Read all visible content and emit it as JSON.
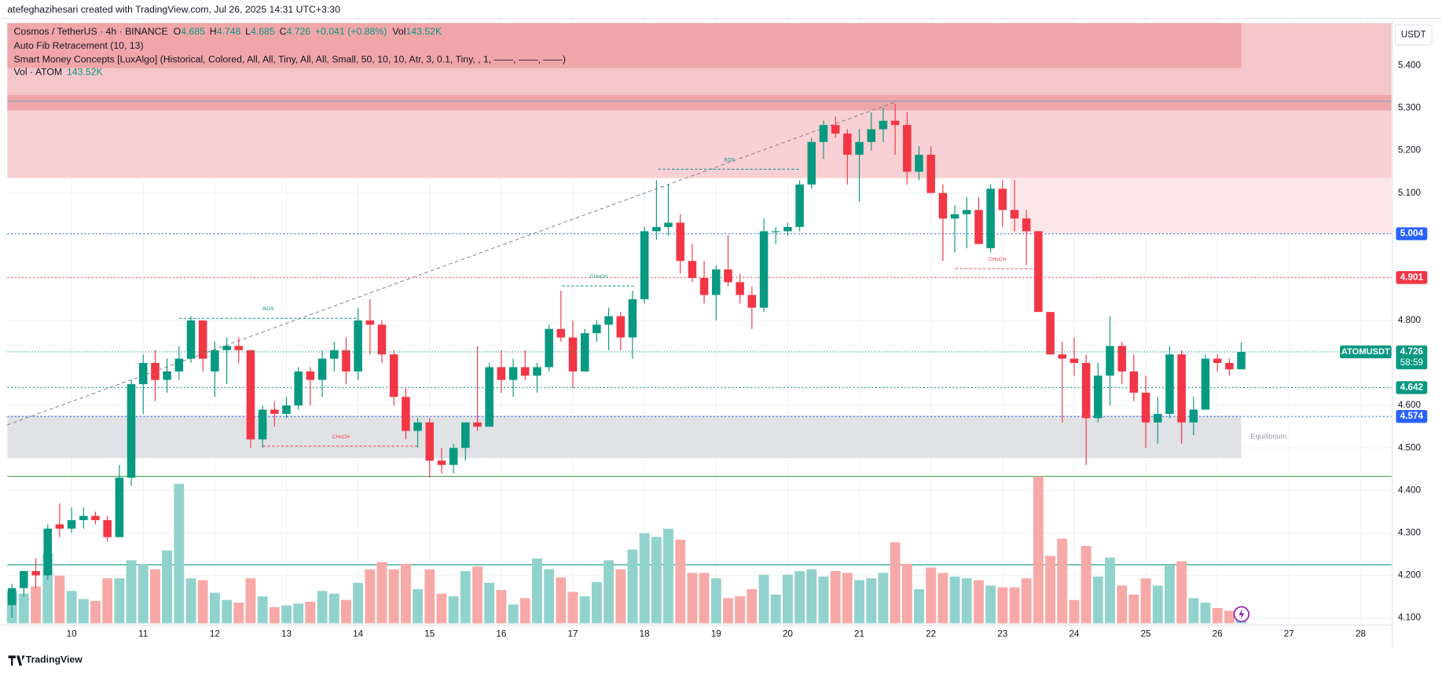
{
  "attribution": "atefeghazihesari created with TradingView.com, Jul 26, 2025 14:31 UTC+3:30",
  "footer": "TradingView",
  "chart_data": {
    "type": "candlestick",
    "symbol": "Cosmos / TetherUS · 4h · BINANCE",
    "symbol_short": "ATOMUSDT",
    "countdown": "58:59",
    "currency": "USDT",
    "legend_labels": {
      "open": "O",
      "high": "H",
      "low": "L",
      "close": "C",
      "volume": "Vol"
    },
    "change": "+0.041 (+0.88%)",
    "last_volume_label": "143.52K",
    "indicators": [
      "Auto Fib Retracement (10, 13)",
      "Smart Money Concepts [LuxAlgo] (Historical, Colored, All, All, Tiny, All, All, Small, 50, 10, 10, Atr, 3, 0.1, Tiny, , 1, ——, ——, ——)",
      "Vol · ATOM"
    ],
    "up_color": "#089981",
    "down_color": "#f23645",
    "volume_up_color": "#92d2cc",
    "volume_down_color": "#f7a9a7",
    "x": [
      9.167,
      9.333,
      9.5,
      9.667,
      9.833,
      10,
      10.167,
      10.333,
      10.5,
      10.667,
      10.833,
      11,
      11.167,
      11.333,
      11.5,
      11.667,
      11.833,
      12,
      12.167,
      12.333,
      12.5,
      12.667,
      12.833,
      13,
      13.167,
      13.333,
      13.5,
      13.667,
      13.833,
      14,
      14.167,
      14.333,
      14.5,
      14.667,
      14.833,
      15,
      15.167,
      15.333,
      15.5,
      15.667,
      15.833,
      16,
      16.167,
      16.333,
      16.5,
      16.667,
      16.833,
      17,
      17.167,
      17.333,
      17.5,
      17.667,
      17.833,
      18,
      18.167,
      18.333,
      18.5,
      18.667,
      18.833,
      19,
      19.167,
      19.333,
      19.5,
      19.667,
      19.833,
      20,
      20.167,
      20.333,
      20.5,
      20.667,
      20.833,
      21,
      21.167,
      21.333,
      21.5,
      21.667,
      21.833,
      22,
      22.167,
      22.333,
      22.5,
      22.667,
      22.833,
      23,
      23.167,
      23.333,
      23.5,
      23.667,
      23.833,
      24,
      24.167,
      24.333,
      24.5,
      24.667,
      24.833,
      25,
      25.167,
      25.333,
      25.5,
      25.667,
      25.833,
      26,
      26.167,
      26.333
    ],
    "open": [
      4.13,
      4.17,
      4.21,
      4.2,
      4.32,
      4.31,
      4.33,
      4.34,
      4.33,
      4.29,
      4.43,
      4.65,
      4.7,
      4.66,
      4.68,
      4.71,
      4.8,
      4.68,
      4.73,
      4.74,
      4.73,
      4.52,
      4.59,
      4.58,
      4.6,
      4.68,
      4.66,
      4.71,
      4.73,
      4.68,
      4.8,
      4.79,
      4.72,
      4.62,
      4.54,
      4.56,
      4.47,
      4.46,
      4.5,
      4.56,
      4.55,
      4.69,
      4.66,
      4.69,
      4.67,
      4.69,
      4.78,
      4.76,
      4.68,
      4.77,
      4.79,
      4.81,
      4.76,
      4.85,
      5.01,
      5.02,
      5.03,
      4.94,
      4.9,
      4.86,
      4.92,
      4.89,
      4.86,
      4.83,
      5.01,
      5.01,
      5.02,
      5.12,
      5.22,
      5.26,
      5.24,
      5.19,
      5.22,
      5.25,
      5.27,
      5.26,
      5.15,
      5.19,
      5.1,
      5.04,
      5.05,
      5.06,
      4.97,
      5.11,
      5.06,
      5.04,
      5.01,
      4.82,
      4.72,
      4.71,
      4.7,
      4.57,
      4.67,
      4.74,
      4.68,
      4.63,
      4.56,
      4.58,
      4.72,
      4.56,
      4.59,
      4.71,
      4.7,
      4.685
    ],
    "high": [
      4.18,
      4.21,
      4.24,
      4.32,
      4.37,
      4.36,
      4.36,
      4.35,
      4.34,
      4.46,
      4.66,
      4.72,
      4.73,
      4.71,
      4.74,
      4.81,
      4.8,
      4.75,
      4.76,
      4.76,
      4.73,
      4.6,
      4.61,
      4.62,
      4.69,
      4.69,
      4.73,
      4.75,
      4.76,
      4.83,
      4.85,
      4.8,
      4.73,
      4.64,
      4.57,
      4.57,
      4.5,
      4.51,
      4.56,
      4.74,
      4.7,
      4.73,
      4.71,
      4.73,
      4.7,
      4.79,
      4.87,
      4.8,
      4.78,
      4.8,
      4.83,
      4.82,
      4.87,
      5.02,
      5.13,
      5.12,
      5.05,
      4.98,
      4.94,
      4.93,
      5.0,
      4.91,
      4.88,
      5.04,
      5.02,
      5.03,
      5.13,
      5.23,
      5.27,
      5.28,
      5.25,
      5.25,
      5.29,
      5.3,
      5.31,
      5.29,
      5.21,
      5.21,
      5.12,
      5.07,
      5.09,
      5.09,
      5.12,
      5.13,
      5.13,
      5.06,
      5.01,
      4.82,
      4.75,
      4.76,
      4.72,
      4.7,
      4.81,
      4.75,
      4.72,
      4.67,
      4.62,
      4.74,
      4.73,
      4.62,
      4.72,
      4.72,
      4.71,
      4.748
    ],
    "low": [
      4.1,
      4.15,
      4.17,
      4.19,
      4.29,
      4.3,
      4.31,
      4.32,
      4.28,
      4.29,
      4.41,
      4.58,
      4.61,
      4.63,
      4.66,
      4.7,
      4.68,
      4.62,
      4.65,
      4.7,
      4.5,
      4.5,
      4.55,
      4.57,
      4.59,
      4.6,
      4.62,
      4.68,
      4.65,
      4.66,
      4.72,
      4.7,
      4.6,
      4.52,
      4.5,
      4.43,
      4.44,
      4.44,
      4.47,
      4.54,
      4.55,
      4.63,
      4.62,
      4.66,
      4.63,
      4.68,
      4.75,
      4.64,
      4.68,
      4.75,
      4.73,
      4.73,
      4.71,
      4.84,
      4.99,
      5.0,
      4.91,
      4.89,
      4.84,
      4.8,
      4.88,
      4.84,
      4.78,
      4.82,
      4.98,
      5.0,
      5.01,
      5.11,
      5.18,
      5.23,
      5.12,
      5.08,
      5.2,
      5.22,
      5.19,
      5.12,
      5.13,
      5.1,
      4.94,
      4.96,
      4.97,
      4.98,
      4.96,
      5.02,
      5.01,
      4.93,
      4.82,
      4.72,
      4.56,
      4.67,
      4.46,
      4.56,
      4.6,
      4.65,
      4.61,
      4.5,
      4.51,
      4.57,
      4.51,
      4.53,
      4.59,
      4.68,
      4.67,
      4.685
    ],
    "close": [
      4.17,
      4.21,
      4.2,
      4.31,
      4.31,
      4.33,
      4.34,
      4.33,
      4.29,
      4.43,
      4.65,
      4.7,
      4.66,
      4.68,
      4.71,
      4.8,
      4.71,
      4.73,
      4.74,
      4.73,
      4.52,
      4.59,
      4.58,
      4.6,
      4.68,
      4.66,
      4.71,
      4.73,
      4.68,
      4.8,
      4.79,
      4.72,
      4.62,
      4.54,
      4.56,
      4.47,
      4.46,
      4.5,
      4.56,
      4.55,
      4.69,
      4.66,
      4.69,
      4.67,
      4.69,
      4.78,
      4.76,
      4.68,
      4.77,
      4.79,
      4.81,
      4.76,
      4.85,
      5.01,
      5.02,
      5.03,
      4.94,
      4.9,
      4.86,
      4.92,
      4.89,
      4.86,
      4.83,
      5.01,
      5.01,
      5.02,
      5.12,
      5.22,
      5.26,
      5.24,
      5.19,
      5.22,
      5.25,
      5.27,
      5.26,
      5.15,
      5.19,
      5.1,
      5.04,
      5.05,
      5.06,
      4.98,
      5.11,
      5.06,
      5.04,
      5.01,
      4.82,
      4.72,
      4.71,
      4.7,
      4.57,
      4.67,
      4.74,
      4.68,
      4.63,
      4.56,
      4.58,
      4.72,
      4.56,
      4.59,
      4.71,
      4.7,
      4.685,
      4.726
    ],
    "volume": [
      504,
      462,
      574,
      1092,
      742,
      504,
      378,
      350,
      700,
      700,
      980,
      924,
      840,
      1134,
      2170,
      700,
      672,
      476,
      364,
      322,
      700,
      420,
      252,
      280,
      308,
      336,
      504,
      462,
      364,
      630,
      840,
      952,
      840,
      924,
      532,
      840,
      462,
      420,
      812,
      882,
      630,
      518,
      294,
      392,
      1008,
      840,
      714,
      490,
      420,
      644,
      980,
      840,
      1148,
      1400,
      1344,
      1470,
      1302,
      784,
      784,
      700,
      392,
      420,
      532,
      756,
      448,
      756,
      812,
      840,
      728,
      812,
      784,
      672,
      700,
      784,
      1260,
      924,
      532,
      868,
      784,
      728,
      700,
      672,
      588,
      560,
      560,
      700,
      2282,
      1050,
      1316,
      364,
      1204,
      728,
      1022,
      588,
      448,
      700,
      588,
      896,
      966,
      392,
      322,
      238,
      196,
      143.52
    ],
    "volume_lim": [
      0,
      3000
    ],
    "xlim": [
      9.103,
      28.43
    ],
    "xticks": [
      10,
      11,
      12,
      13,
      14,
      15,
      16,
      17,
      18,
      19,
      20,
      21,
      22,
      23,
      24,
      25,
      26,
      27,
      28
    ],
    "ylim": [
      4.087,
      5.5
    ],
    "yticks": [
      {
        "value": 4.1,
        "label": "4.100"
      },
      {
        "value": 4.2,
        "label": "4.200"
      },
      {
        "value": 4.3,
        "label": "4.300"
      },
      {
        "value": 4.4,
        "label": "4.400"
      },
      {
        "value": 4.5,
        "label": "4.500"
      },
      {
        "value": 4.6,
        "label": "4.600"
      },
      {
        "value": 4.8,
        "label": "4.800"
      },
      {
        "value": 5.1,
        "label": "5.100"
      },
      {
        "value": 5.2,
        "label": "5.200"
      },
      {
        "value": 5.3,
        "label": "5.300"
      },
      {
        "value": 5.4,
        "label": "5.400"
      }
    ],
    "grid": true,
    "zones": [
      {
        "top": 5.5,
        "bottom": 5.294,
        "x0": 9.103,
        "x1": 28.43,
        "color": "#f5c6c9"
      },
      {
        "top": 5.5,
        "bottom": 5.394,
        "x0": 9.103,
        "x1": 26.333,
        "color": "#f0a5a9"
      },
      {
        "top": 5.331,
        "bottom": 5.294,
        "x0": 9.103,
        "x1": 28.43,
        "color": "#eea6aa"
      },
      {
        "top": 5.294,
        "bottom": 5.135,
        "x0": 9.103,
        "x1": 28.43,
        "color": "#f9d0d3"
      },
      {
        "top": 5.135,
        "bottom": 5.004,
        "x0": 23.1,
        "x1": 28.43,
        "color": "#fde7e8"
      },
      {
        "top": 4.576,
        "bottom": 4.476,
        "x0": 9.103,
        "x1": 26.333,
        "color": "#e1e2e6",
        "label": "Equilibrium"
      }
    ],
    "price_lines": [
      {
        "value": 5.316,
        "color": "#8fa3b8",
        "style": "solid",
        "show_label": false
      },
      {
        "value": 5.004,
        "color": "#2962ff",
        "style": "dotted",
        "show_label": true
      },
      {
        "value": 4.901,
        "color": "#f23645",
        "style": "dotted",
        "show_label": true
      },
      {
        "value": 4.642,
        "color": "#089981",
        "style": "dotted",
        "show_label": true
      },
      {
        "value": 4.574,
        "color": "#2962ff",
        "style": "dotted",
        "show_label": true
      },
      {
        "value": 4.433,
        "color": "#4caf50",
        "style": "solid",
        "show_label": false
      },
      {
        "value": 4.225,
        "color": "#089981",
        "style": "solid",
        "show_label": false
      }
    ],
    "structures": [
      {
        "label": "BOS",
        "price": 4.805,
        "x0": 11.5,
        "x1": 14.0,
        "color": "#089981"
      },
      {
        "label": "CHoCH",
        "price": 4.504,
        "x0": 12.67,
        "x1": 14.85,
        "color": "#f23645"
      },
      {
        "label": "CHoCH",
        "price": 4.881,
        "x0": 16.85,
        "x1": 17.87,
        "color": "#089981"
      },
      {
        "label": "BOS",
        "price": 5.156,
        "x0": 18.19,
        "x1": 20.18,
        "color": "#089981"
      },
      {
        "label": "CHoCH",
        "price": 4.922,
        "x0": 22.34,
        "x1": 23.51,
        "color": "#f23645"
      }
    ],
    "fib_line": {
      "x0": 9.1,
      "y0": 4.554,
      "x1": 21.53,
      "y1": 5.316
    }
  }
}
